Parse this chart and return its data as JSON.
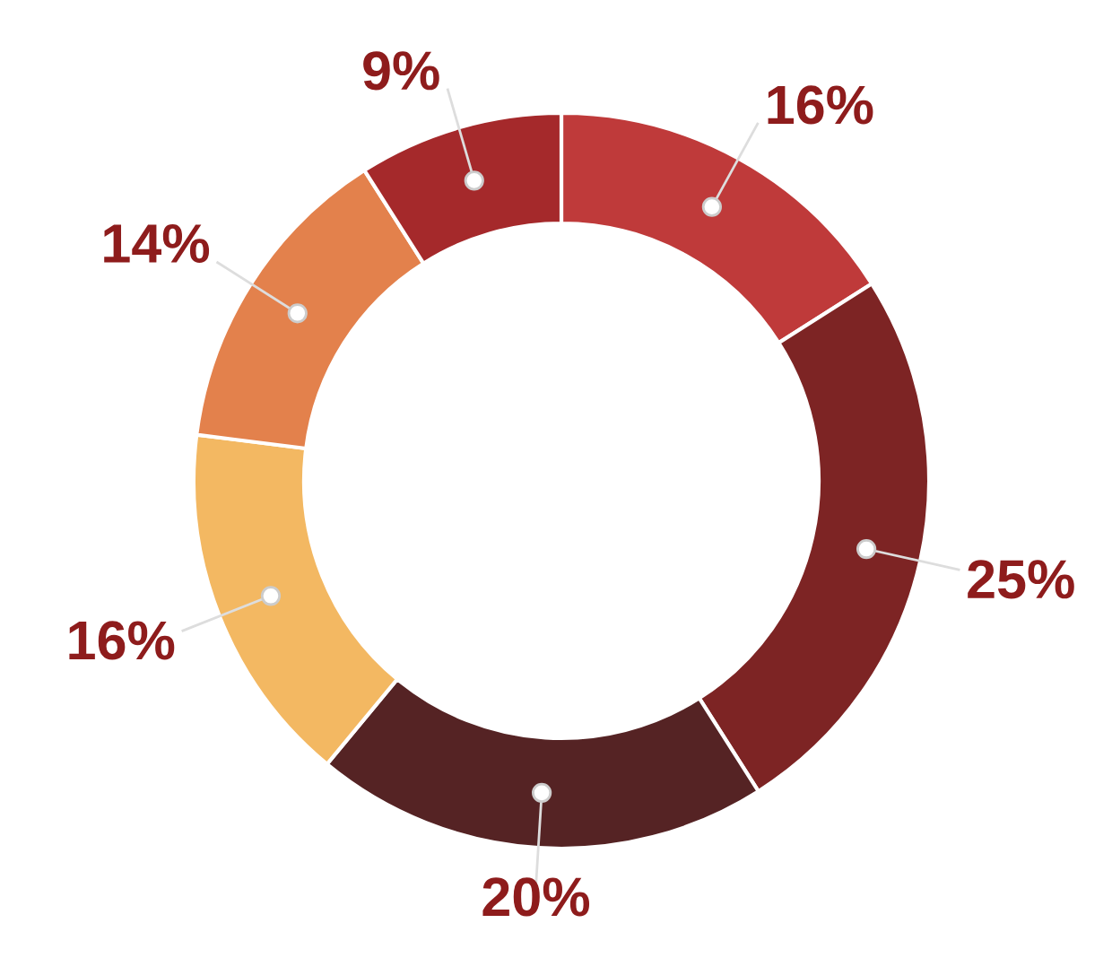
{
  "chart_data": {
    "type": "donut",
    "categories": [
      null,
      null,
      null,
      null,
      null,
      null
    ],
    "values": [
      16,
      25,
      20,
      16,
      14,
      9
    ],
    "colors": [
      "#bf3a3a",
      "#7d2424",
      "#552324",
      "#f3b862",
      "#e3814c",
      "#a5292b"
    ],
    "value_labels": [
      "16%",
      "25%",
      "20%",
      "16%",
      "14%",
      "9%"
    ]
  }
}
